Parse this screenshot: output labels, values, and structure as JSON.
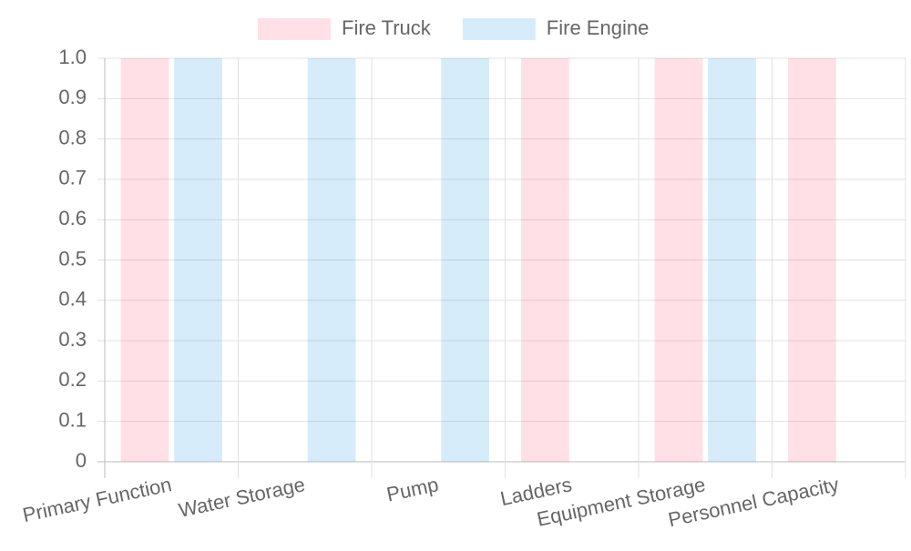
{
  "chart_data": {
    "type": "bar",
    "categories": [
      "Primary Function",
      "Water Storage",
      "Pump",
      "Ladders",
      "Equipment Storage",
      "Personnel Capacity"
    ],
    "series": [
      {
        "name": "Fire Truck",
        "color": "rgba(255, 99, 132, 0.2)",
        "values": [
          1,
          0,
          0,
          1,
          1,
          1
        ]
      },
      {
        "name": "Fire Engine",
        "color": "rgba(54, 162, 235, 0.2)",
        "values": [
          1,
          1,
          1,
          0,
          1,
          0
        ]
      }
    ],
    "ylim": [
      0,
      1
    ],
    "yticks": [
      0,
      0.1,
      0.2,
      0.3,
      0.4,
      0.5,
      0.6,
      0.7,
      0.8,
      0.9,
      {
        "value": 1,
        "label": "1.0"
      }
    ],
    "grid": true,
    "legend": "top"
  }
}
